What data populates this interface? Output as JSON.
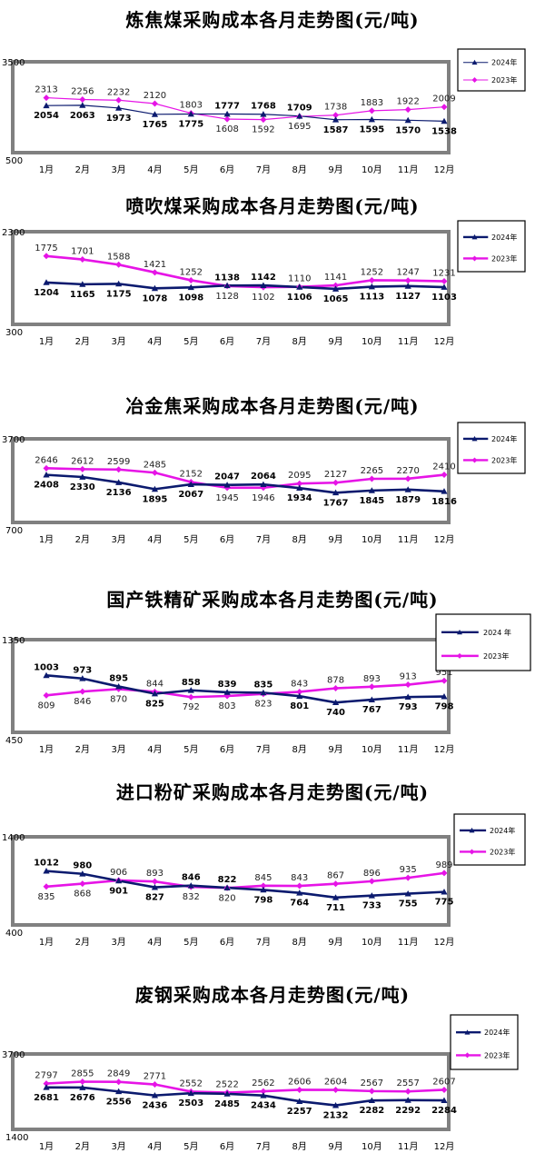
{
  "colors": {
    "series_2024": "#0b1a6e",
    "series_2023": "#e614e6",
    "frame": "#808080"
  },
  "chart_data": [
    {
      "type": "line",
      "title": "炼焦煤采购成本各月走势图(元/吨)",
      "categories": [
        "1月",
        "2月",
        "3月",
        "4月",
        "5月",
        "6月",
        "7月",
        "8月",
        "9月",
        "10月",
        "11月",
        "12月"
      ],
      "ylim": [
        500,
        3500
      ],
      "yticks": [
        "3500",
        "500"
      ],
      "legend": "top-right",
      "series": [
        {
          "name": "2024年",
          "values": [
            2054,
            2063,
            1973,
            1765,
            1775,
            1777,
            1768,
            1709,
            1587,
            1595,
            1570,
            1538
          ]
        },
        {
          "name": "2023年",
          "values": [
            2313,
            2256,
            2232,
            2120,
            1803,
            1608,
            1592,
            1695,
            1738,
            1883,
            1922,
            2009
          ]
        }
      ]
    },
    {
      "type": "line",
      "title": "喷吹煤采购成本各月走势图(元/吨)",
      "categories": [
        "1月",
        "2月",
        "3月",
        "4月",
        "5月",
        "6月",
        "7月",
        "8月",
        "9月",
        "10月",
        "11月",
        "12月"
      ],
      "ylim": [
        300,
        2300
      ],
      "yticks": [
        "2300",
        "300"
      ],
      "legend": "top-right",
      "series": [
        {
          "name": "2024年",
          "values": [
            1204,
            1165,
            1175,
            1078,
            1098,
            1138,
            1142,
            1106,
            1065,
            1113,
            1127,
            1103
          ]
        },
        {
          "name": "2023年",
          "values": [
            1775,
            1701,
            1588,
            1421,
            1252,
            1128,
            1102,
            1110,
            1141,
            1252,
            1247,
            1231
          ]
        }
      ]
    },
    {
      "type": "line",
      "title": "冶金焦采购成本各月走势图(元/吨)",
      "categories": [
        "1月",
        "2月",
        "3月",
        "4月",
        "5月",
        "6月",
        "7月",
        "8月",
        "9月",
        "10月",
        "11月",
        "12月"
      ],
      "ylim": [
        700,
        3700
      ],
      "yticks": [
        "3700",
        "700"
      ],
      "legend": "top-right",
      "series": [
        {
          "name": "2024年",
          "values": [
            2408,
            2330,
            2136,
            1895,
            2067,
            2047,
            2064,
            1934,
            1767,
            1845,
            1879,
            1816
          ]
        },
        {
          "name": "2023年",
          "values": [
            2646,
            2612,
            2599,
            2485,
            2152,
            1945,
            1946,
            2095,
            2127,
            2265,
            2270,
            2410
          ]
        }
      ]
    },
    {
      "type": "line",
      "title": "国产铁精矿采购成本各月走势图(元/吨)",
      "categories": [
        "1月",
        "2月",
        "3月",
        "4月",
        "5月",
        "6月",
        "7月",
        "8月",
        "9月",
        "10月",
        "11月",
        "12月"
      ],
      "ylim": [
        450,
        1350
      ],
      "yticks": [
        "1350",
        "450"
      ],
      "legend": "top-right",
      "series": [
        {
          "name": "2024 年",
          "values": [
            1003,
            973,
            895,
            825,
            858,
            839,
            835,
            801,
            740,
            767,
            793,
            798
          ]
        },
        {
          "name": "2023年",
          "values": [
            809,
            846,
            870,
            844,
            792,
            803,
            823,
            843,
            878,
            893,
            913,
            951
          ]
        }
      ]
    },
    {
      "type": "line",
      "title": "进口粉矿采购成本各月走势图(元/吨)",
      "categories": [
        "1月",
        "2月",
        "3月",
        "4月",
        "5月",
        "6月",
        "7月",
        "8月",
        "9月",
        "10月",
        "11月",
        "12月"
      ],
      "ylim": [
        400,
        1400
      ],
      "yticks": [
        "1400",
        "400"
      ],
      "legend": "top-right",
      "series": [
        {
          "name": "2024年",
          "values": [
            1012,
            980,
            901,
            827,
            846,
            822,
            798,
            764,
            711,
            733,
            755,
            775
          ]
        },
        {
          "name": "2023年",
          "values": [
            835,
            868,
            906,
            893,
            832,
            820,
            845,
            843,
            867,
            896,
            935,
            989
          ]
        }
      ]
    },
    {
      "type": "line",
      "title": "废钢采购成本各月走势图(元/吨)",
      "categories": [
        "1月",
        "2月",
        "3月",
        "4月",
        "5月",
        "6月",
        "7月",
        "8月",
        "9月",
        "10月",
        "11月",
        "12月"
      ],
      "ylim": [
        1400,
        3700
      ],
      "yticks": [
        "3700",
        "1400"
      ],
      "legend": "top-right",
      "series": [
        {
          "name": "2024年",
          "values": [
            2681,
            2676,
            2556,
            2436,
            2503,
            2485,
            2434,
            2257,
            2132,
            2282,
            2292,
            2284
          ]
        },
        {
          "name": "2023年",
          "values": [
            2797,
            2855,
            2849,
            2771,
            2552,
            2522,
            2562,
            2606,
            2604,
            2567,
            2557,
            2607
          ]
        }
      ]
    }
  ]
}
